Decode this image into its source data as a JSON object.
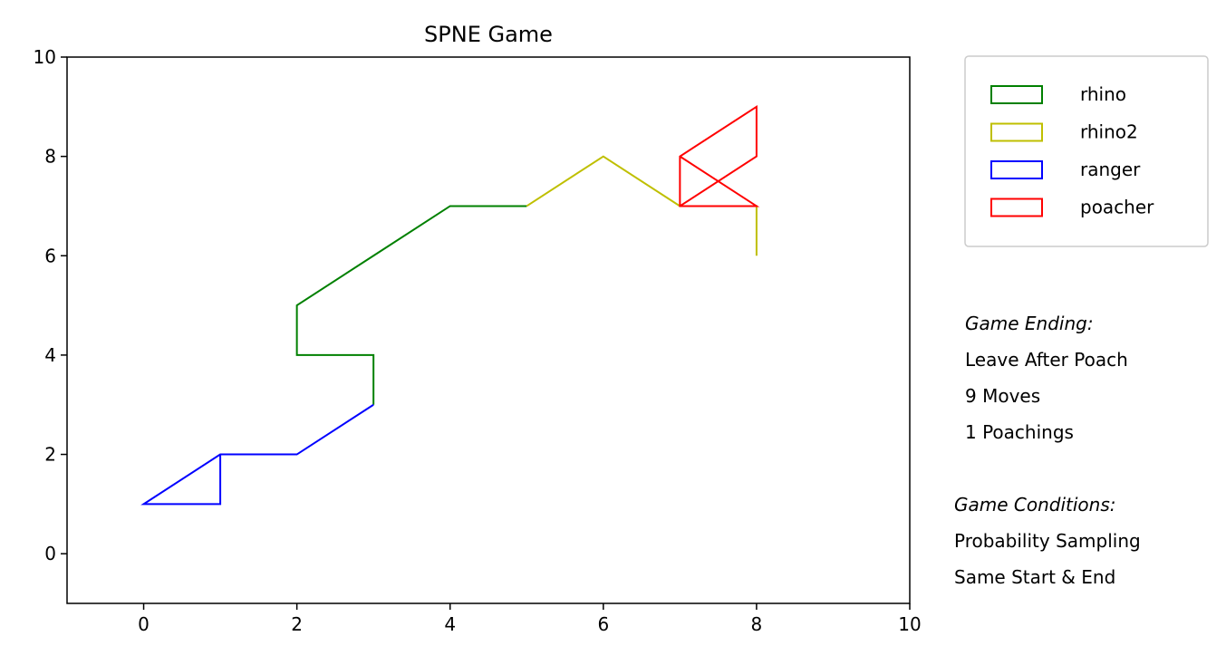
{
  "chart_data": {
    "type": "line",
    "title": "SPNE Game",
    "xlabel": "",
    "ylabel": "",
    "xlim": [
      -1,
      10
    ],
    "ylim": [
      -1,
      10
    ],
    "xticks": [
      0,
      2,
      4,
      6,
      8,
      10
    ],
    "yticks": [
      0,
      2,
      4,
      6,
      8,
      10
    ],
    "grid": false,
    "legend_position": "outside-top-right",
    "series": [
      {
        "name": "rhino",
        "color": "#008000",
        "points": [
          [
            3,
            3
          ],
          [
            3,
            4
          ],
          [
            2,
            4
          ],
          [
            2,
            5
          ],
          [
            3,
            6
          ],
          [
            4,
            7
          ],
          [
            5,
            7
          ]
        ]
      },
      {
        "name": "rhino2",
        "color": "#bfbf00",
        "points": [
          [
            5,
            7
          ],
          [
            6,
            8
          ],
          [
            7,
            7
          ],
          [
            8,
            7
          ],
          [
            8,
            6
          ]
        ]
      },
      {
        "name": "ranger",
        "color": "#0000ff",
        "points": [
          [
            3,
            3
          ],
          [
            2,
            2
          ],
          [
            1,
            2
          ],
          [
            0,
            1
          ],
          [
            1,
            1
          ],
          [
            1,
            2
          ]
        ]
      },
      {
        "name": "poacher",
        "color": "#ff0000",
        "points": [
          [
            7,
            7
          ],
          [
            8,
            8
          ],
          [
            8,
            9
          ],
          [
            7,
            8
          ],
          [
            7,
            7
          ],
          [
            8,
            7
          ],
          [
            7,
            8
          ]
        ]
      }
    ]
  },
  "annotations": {
    "ending": {
      "heading": "Game Ending:",
      "lines": [
        "Leave After Poach",
        "9 Moves",
        "1 Poachings"
      ]
    },
    "conditions": {
      "heading": "Game Conditions:",
      "lines": [
        "Probability Sampling",
        "Same Start & End"
      ]
    }
  }
}
